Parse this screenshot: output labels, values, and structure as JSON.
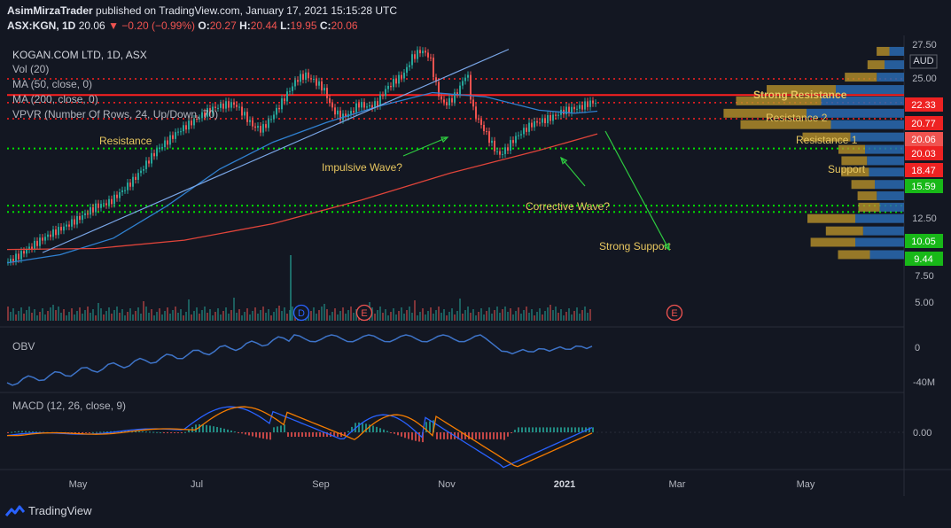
{
  "header": {
    "author": "AsimMirzaTrader",
    "published": "published on TradingView.com, January 17, 2021 15:15:28 UTC",
    "symbol": "ASX:KGN, 1D",
    "last": "20.06",
    "change": "−0.20 (−0.99%)",
    "open_label": "O:",
    "open": "20.27",
    "high_label": "H:",
    "high": "20.44",
    "low_label": "L:",
    "low": "19.95",
    "close_label": "C:",
    "close": "20.06"
  },
  "indicators": {
    "title": "KOGAN.COM LTD, 1D, ASX",
    "vol": "Vol (20)",
    "ma50": "MA (50, close, 0)",
    "ma200": "MA (200, close, 0)",
    "vpvr": "VPVR (Number Of Rows, 24, Up/Down, 70)",
    "obv": "OBV",
    "macd": "MACD (12, 26, close, 9)"
  },
  "annotations": {
    "strong_resistance": "Strong Resistance",
    "resistance2": "Resistance 2",
    "resistance1": "Resistance 1",
    "resistance": "Resistance",
    "support": "Support",
    "strong_support": "Strong Support",
    "impulsive": "Impulsive Wave?",
    "corrective": "Corrective Wave?"
  },
  "events": [
    "D",
    "E",
    "E"
  ],
  "colors": {
    "up": "#26a69a",
    "down": "#ef5350",
    "ma50": "#2f80d0",
    "ma200": "#e0443a",
    "trend": "#7aa7e8",
    "green_line": "#00e000",
    "red_line": "#ff2020",
    "vpvr_up": "#2a6ab0",
    "vpvr_down": "#b8912a",
    "annot": "#e8c760"
  },
  "chart_data": {
    "type": "candlestick",
    "currency": "AUD",
    "price_axis": [
      "27.50",
      "25.00",
      "12.50",
      "7.50",
      "5.00"
    ],
    "price_labels": [
      {
        "value": "22.33",
        "color": "#e22"
      },
      {
        "value": "20.77",
        "color": "#e22"
      },
      {
        "value": "20.06",
        "color": "#ef5350"
      },
      {
        "value": "20.03",
        "color": "#e22"
      },
      {
        "value": "18.47",
        "color": "#e22"
      },
      {
        "value": "15.59",
        "color": "#18b818"
      },
      {
        "value": "10.05",
        "color": "#18b818"
      },
      {
        "value": "9.44",
        "color": "#18b818"
      }
    ],
    "obv_axis": [
      "0",
      "-40M"
    ],
    "macd_axis": [
      "0.00"
    ],
    "x_labels": [
      "May",
      "Jul",
      "Sep",
      "Nov",
      "2021",
      "Mar",
      "May"
    ],
    "levels": {
      "strong_resistance": 22.33,
      "resistance2": 20.77,
      "resistance1": 20.03,
      "resistance": 18.47,
      "support": 15.59,
      "strong_support_high": 10.05,
      "strong_support_low": 9.44
    },
    "price_path": [
      [
        0,
        4.6
      ],
      [
        12,
        5.2
      ],
      [
        25,
        6.0
      ],
      [
        40,
        6.9
      ],
      [
        55,
        7.6
      ],
      [
        70,
        8.3
      ],
      [
        85,
        9.1
      ],
      [
        100,
        10.0
      ],
      [
        115,
        10.4
      ],
      [
        128,
        11.4
      ],
      [
        140,
        12.4
      ],
      [
        150,
        13.4
      ],
      [
        160,
        14.6
      ],
      [
        170,
        15.6
      ],
      [
        180,
        16.3
      ],
      [
        190,
        17.1
      ],
      [
        200,
        17.7
      ],
      [
        210,
        18.3
      ],
      [
        220,
        18.9
      ],
      [
        232,
        19.5
      ],
      [
        244,
        19.8
      ],
      [
        256,
        19.9
      ],
      [
        266,
        18.9
      ],
      [
        276,
        17.8
      ],
      [
        286,
        17.4
      ],
      [
        296,
        18.4
      ],
      [
        306,
        19.7
      ],
      [
        316,
        21.0
      ],
      [
        326,
        22.3
      ],
      [
        336,
        22.7
      ],
      [
        346,
        22.1
      ],
      [
        356,
        21.4
      ],
      [
        366,
        19.4
      ],
      [
        376,
        18.6
      ],
      [
        386,
        19.0
      ],
      [
        396,
        19.9
      ],
      [
        406,
        19.6
      ],
      [
        416,
        19.9
      ],
      [
        426,
        21.3
      ],
      [
        436,
        22.1
      ],
      [
        446,
        22.7
      ],
      [
        456,
        24.4
      ],
      [
        466,
        25.1
      ],
      [
        476,
        24.5
      ],
      [
        482,
        22.0
      ],
      [
        488,
        20.3
      ],
      [
        494,
        19.9
      ],
      [
        500,
        20.3
      ],
      [
        506,
        20.9
      ],
      [
        512,
        21.9
      ],
      [
        518,
        23.0
      ],
      [
        524,
        19.5
      ],
      [
        530,
        18.4
      ],
      [
        538,
        17.3
      ],
      [
        546,
        16.0
      ],
      [
        554,
        14.9
      ],
      [
        562,
        15.5
      ],
      [
        570,
        16.4
      ],
      [
        580,
        17.2
      ],
      [
        592,
        18.0
      ],
      [
        604,
        18.3
      ],
      [
        616,
        18.7
      ],
      [
        626,
        19.2
      ],
      [
        636,
        19.4
      ],
      [
        646,
        19.6
      ],
      [
        656,
        20.0
      ],
      [
        666,
        20.1
      ]
    ],
    "ma50_path": [
      [
        0,
        4.5
      ],
      [
        60,
        5.3
      ],
      [
        120,
        6.9
      ],
      [
        180,
        10.0
      ],
      [
        240,
        13.6
      ],
      [
        300,
        16.2
      ],
      [
        360,
        18.1
      ],
      [
        420,
        19.7
      ],
      [
        480,
        21.0
      ],
      [
        540,
        20.6
      ],
      [
        600,
        19.3
      ],
      [
        640,
        19.0
      ],
      [
        666,
        19.2
      ]
    ],
    "ma200_path": [
      [
        0,
        5.8
      ],
      [
        100,
        5.9
      ],
      [
        200,
        6.7
      ],
      [
        300,
        8.3
      ],
      [
        400,
        10.6
      ],
      [
        500,
        13.2
      ],
      [
        600,
        15.4
      ],
      [
        666,
        17.0
      ]
    ],
    "trendline": [
      [
        40,
        5.5
      ],
      [
        566,
        25.2
      ]
    ],
    "vpvr_rows": [
      {
        "price": 25.0,
        "up": 0.15,
        "down": 0.12
      },
      {
        "price": 23.7,
        "up": 0.2,
        "down": 0.16
      },
      {
        "price": 22.5,
        "up": 0.28,
        "down": 0.3
      },
      {
        "price": 21.3,
        "up": 0.7,
        "down": 0.65
      },
      {
        "price": 20.2,
        "up": 0.85,
        "down": 0.8
      },
      {
        "price": 19.0,
        "up": 1.0,
        "down": 0.78
      },
      {
        "price": 17.9,
        "up": 0.75,
        "down": 0.85
      },
      {
        "price": 16.7,
        "up": 0.55,
        "down": 0.45
      },
      {
        "price": 15.5,
        "up": 0.4,
        "down": 0.25
      },
      {
        "price": 14.4,
        "up": 0.38,
        "down": 0.24
      },
      {
        "price": 13.3,
        "up": 0.36,
        "down": 0.26
      },
      {
        "price": 12.1,
        "up": 0.3,
        "down": 0.22
      },
      {
        "price": 11.0,
        "up": 0.28,
        "down": 0.18
      },
      {
        "price": 9.9,
        "up": 0.25,
        "down": 0.2
      },
      {
        "price": 8.8,
        "up": 0.5,
        "down": 0.45
      },
      {
        "price": 7.6,
        "up": 0.42,
        "down": 0.35
      },
      {
        "price": 6.5,
        "up": 0.5,
        "down": 0.42
      },
      {
        "price": 5.3,
        "up": 0.35,
        "down": 0.3
      }
    ]
  },
  "footer": {
    "brand": "TradingView"
  }
}
